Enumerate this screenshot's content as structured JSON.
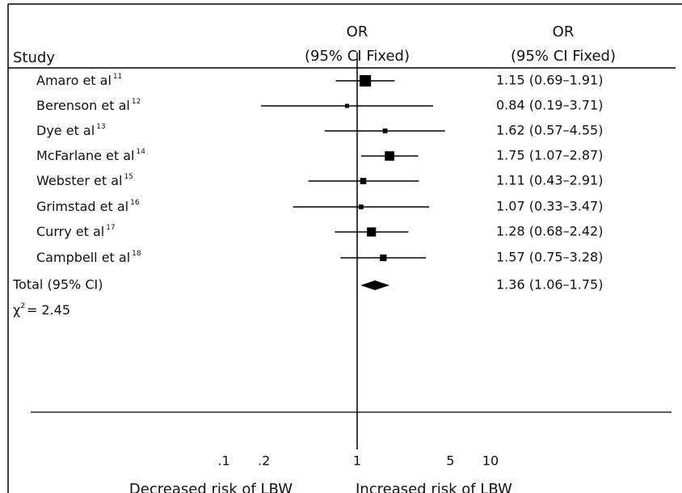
{
  "chart_data": {
    "type": "forest",
    "study_header": "Study",
    "plot_header": "OR",
    "plot_subheader": "(95% CI Fixed)",
    "text_header": "OR",
    "text_subheader": "(95% CI Fixed)",
    "categories": [
      "Amaro et al",
      "Berenson et al",
      "Dye et al",
      "McFarlane et al",
      "Webster et al",
      "Grimstad et al",
      "Curry et al",
      "Campbell et al"
    ],
    "refs": [
      "11",
      "12",
      "13",
      "14",
      "15",
      "16",
      "17",
      "18"
    ],
    "values": [
      1.15,
      0.84,
      1.62,
      1.75,
      1.11,
      1.07,
      1.28,
      1.57
    ],
    "ci_low": [
      0.69,
      0.19,
      0.57,
      1.07,
      0.43,
      0.33,
      0.68,
      0.75
    ],
    "ci_high": [
      1.91,
      3.71,
      4.55,
      2.87,
      2.91,
      3.47,
      2.42,
      3.28
    ],
    "weights": [
      24,
      3,
      4,
      16,
      7,
      4,
      15,
      8
    ],
    "value_labels": [
      "1.15 (0.69–1.91)",
      "0.84 (0.19–3.71)",
      "1.62 (0.57–4.55)",
      "1.75 (1.07–2.87)",
      "1.11 (0.43–2.91)",
      "1.07 (0.33–3.47)",
      "1.28 (0.68–2.42)",
      "1.57 (0.75–3.28)"
    ],
    "total": {
      "label": "Total (95% CI)",
      "value": 1.36,
      "ci_low": 1.06,
      "ci_high": 1.75,
      "value_label": "1.36 (1.06–1.75)"
    },
    "heterogeneity": {
      "symbol": "χ",
      "power": "2",
      "eq": "=",
      "value": 2.45
    },
    "reference_line": 1,
    "log_scale": true,
    "xlim": [
      0.1,
      10
    ],
    "xticks": [
      {
        "value": 0.1,
        "label": ".1"
      },
      {
        "value": 0.2,
        "label": ".2"
      },
      1,
      5,
      10
    ],
    "left_label": "Decreased risk of LBW",
    "right_label": "Increased risk of LBW",
    "color": "#000000"
  }
}
